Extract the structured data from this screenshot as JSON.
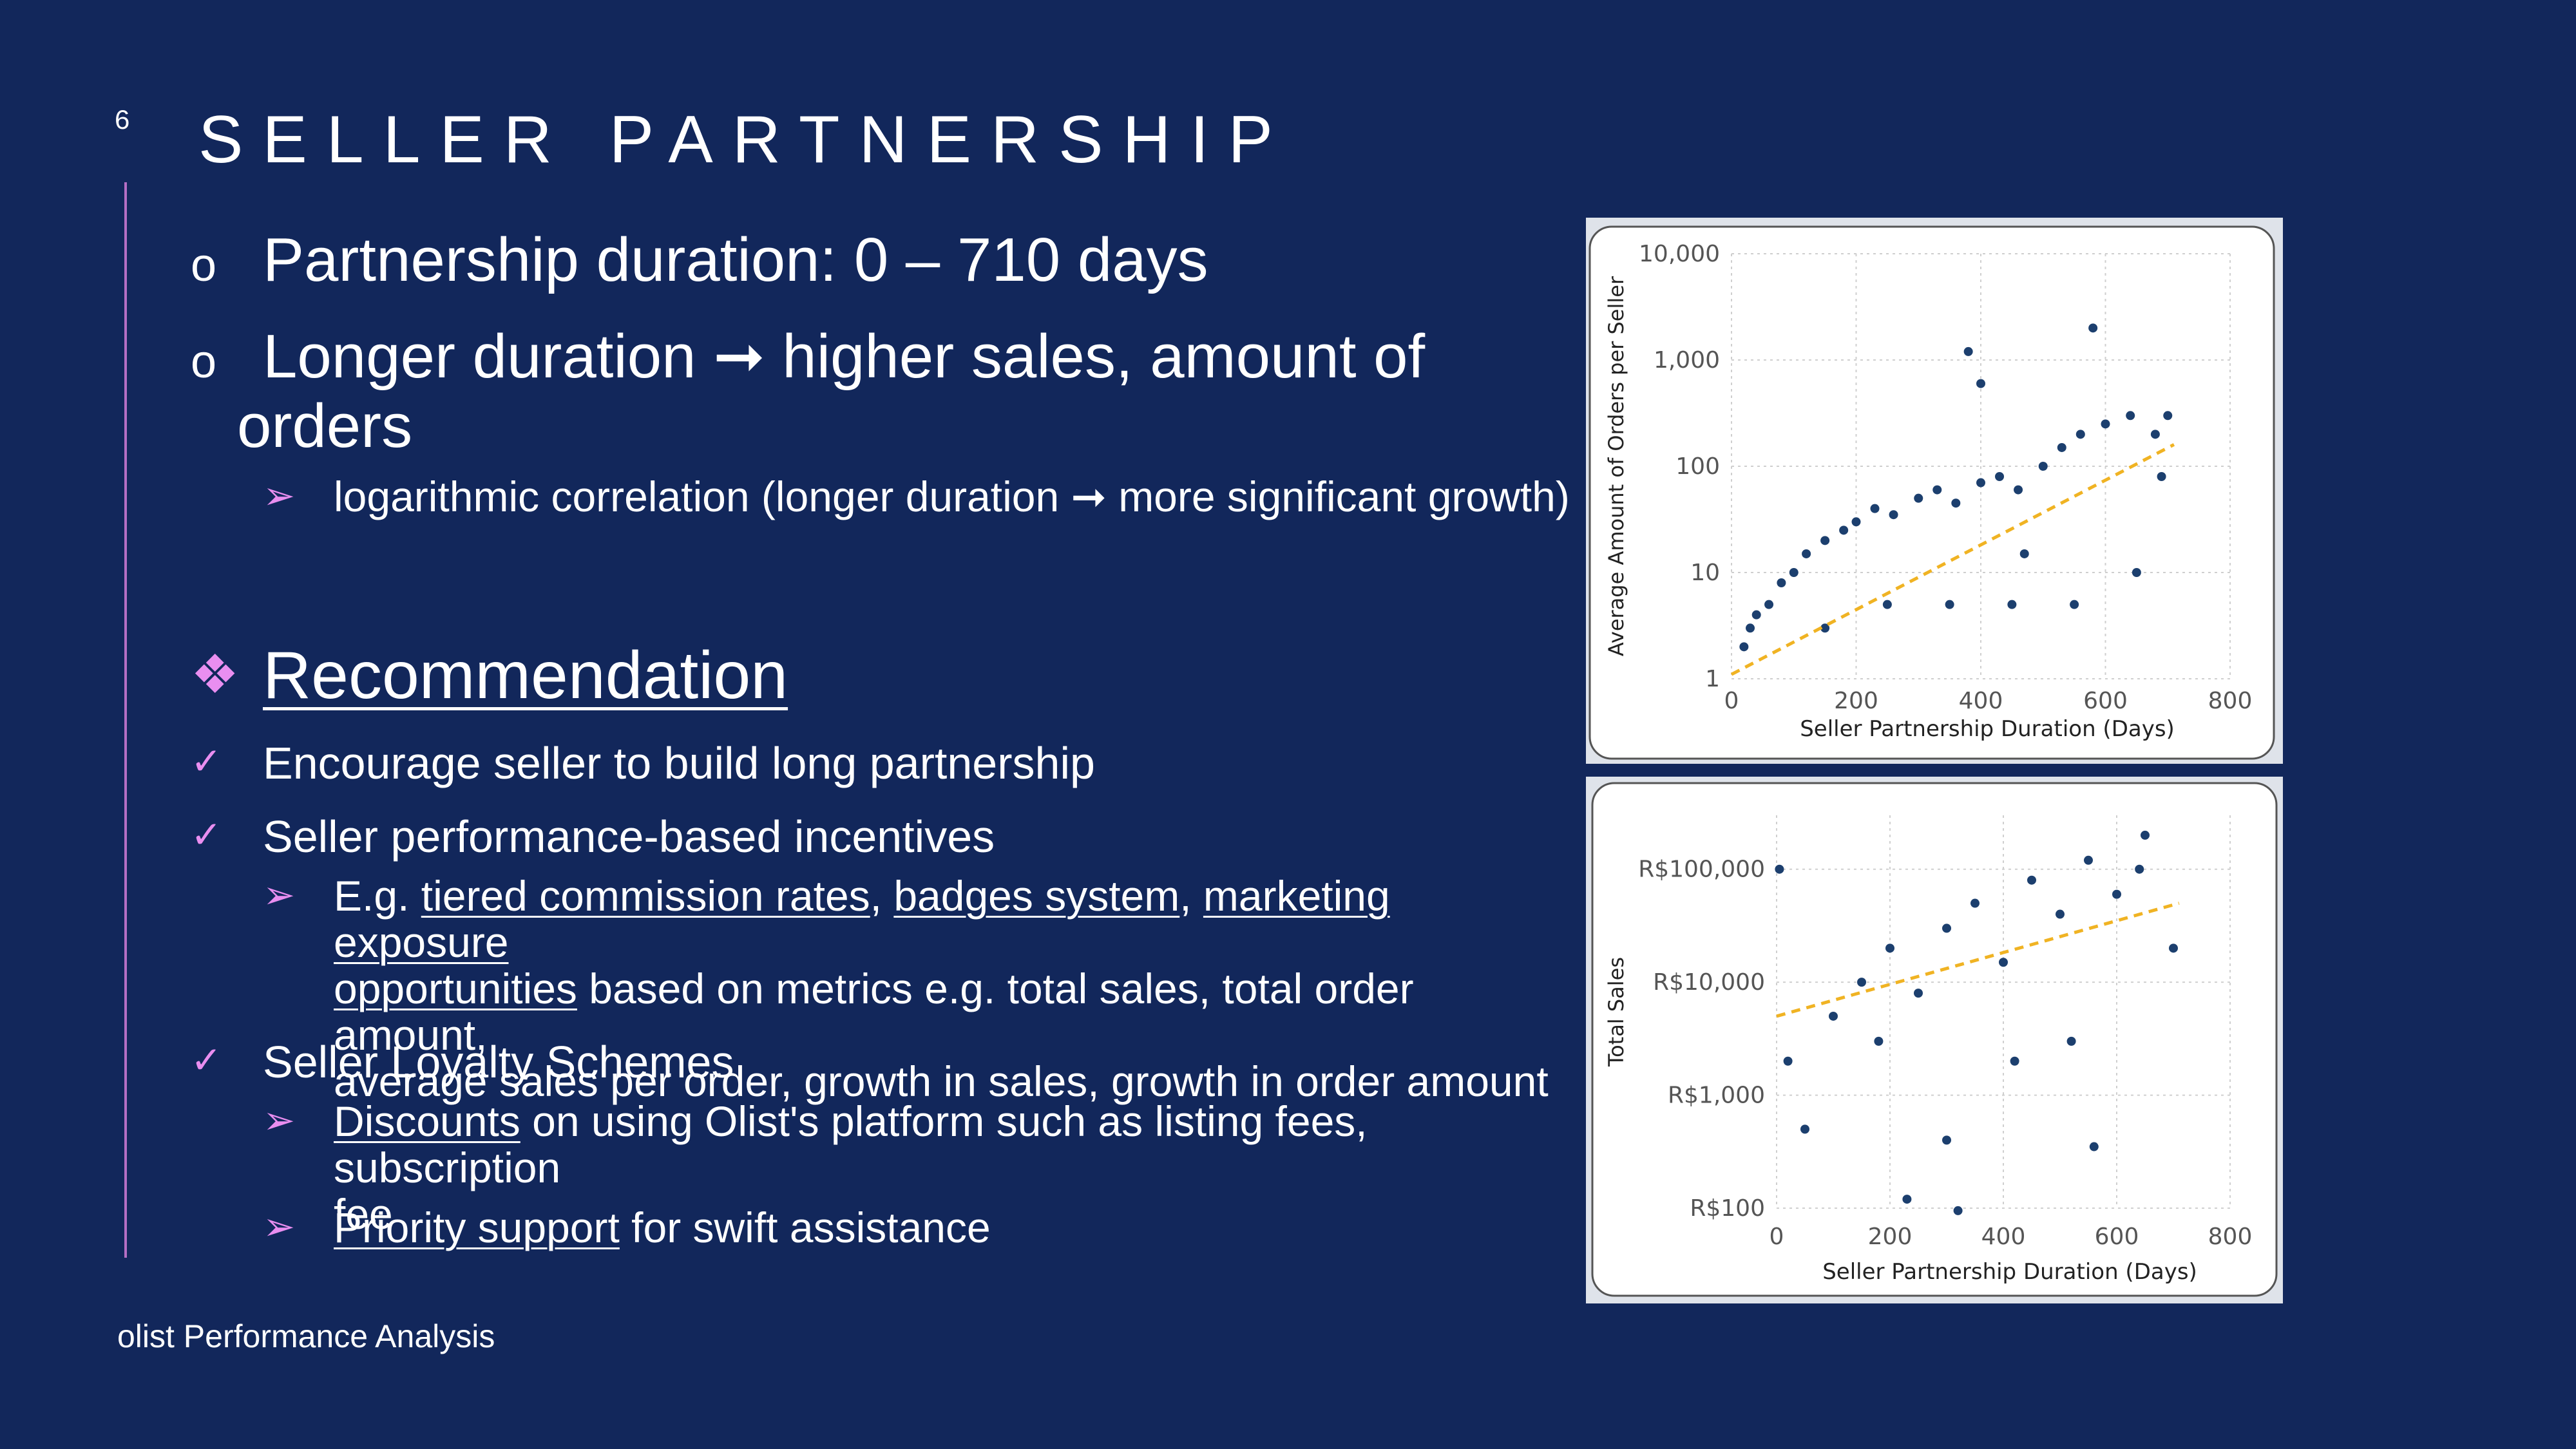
{
  "page_number": "6",
  "title": "SELLER PARTNERSHIP",
  "bullets": {
    "b1": "Partnership duration: 0 – 710 days",
    "b2_line1": "Longer duration ➞ higher sales, amount of",
    "b2_line2": "orders",
    "b2_sub": "logarithmic correlation (longer duration ➞ more significant growth)"
  },
  "recommendation": {
    "heading": "Recommendation",
    "item1": "Encourage seller to build long partnership",
    "item2": "Seller performance-based incentives",
    "item2_sub": {
      "eg": "E.g. ",
      "link1": "tiered commission rates",
      "sep1": ", ",
      "link2": "badges system",
      "sep2": ", ",
      "link3a": "marketing exposure",
      "link3b": "opportunities",
      "rest1": " based on metrics e.g. total sales, total order amount,",
      "rest2": "average sales per order, growth in sales, growth in order amount"
    },
    "item3": "Seller Loyalty Schemes",
    "item3_sub1": {
      "link": "Discounts",
      "rest1": " on using Olist's platform such as listing fees, subscription",
      "rest2": "fee"
    },
    "item3_sub2": {
      "link": "Priority support",
      "rest": " for swift assistance"
    }
  },
  "footer": "olist Performance Analysis",
  "markers": {
    "circle": "o",
    "arrow": "➢",
    "check": "✓",
    "diamond": "❖"
  },
  "colors": {
    "background": "#12275b",
    "accent": "#e98ef0",
    "point": "#1c3f6e",
    "trend": "#f0b323"
  },
  "chart_data": [
    {
      "type": "scatter",
      "xlabel": "Seller Partnership Duration (Days)",
      "ylabel": "Average Amount of Orders per Seller",
      "x_ticks": [
        "0",
        "200",
        "400",
        "600",
        "800"
      ],
      "y_ticks": [
        "1",
        "10",
        "100",
        "1,000",
        "10,000"
      ],
      "xlim": [
        0,
        800
      ],
      "ylim": [
        1,
        10000
      ],
      "y_scale": "log",
      "grid": true,
      "trendline": {
        "x": [
          0,
          710
        ],
        "y": [
          1.1,
          160
        ]
      },
      "points": [
        [
          20,
          2
        ],
        [
          30,
          3
        ],
        [
          40,
          4
        ],
        [
          60,
          5
        ],
        [
          80,
          8
        ],
        [
          100,
          10
        ],
        [
          120,
          15
        ],
        [
          150,
          20
        ],
        [
          180,
          25
        ],
        [
          200,
          30
        ],
        [
          230,
          40
        ],
        [
          260,
          35
        ],
        [
          300,
          50
        ],
        [
          330,
          60
        ],
        [
          360,
          45
        ],
        [
          400,
          70
        ],
        [
          430,
          80
        ],
        [
          460,
          60
        ],
        [
          500,
          100
        ],
        [
          530,
          150
        ],
        [
          560,
          200
        ],
        [
          600,
          250
        ],
        [
          640,
          300
        ],
        [
          680,
          200
        ],
        [
          700,
          300
        ],
        [
          380,
          1200
        ],
        [
          580,
          2000
        ],
        [
          400,
          600
        ],
        [
          150,
          3
        ],
        [
          250,
          5
        ],
        [
          350,
          5
        ],
        [
          450,
          5
        ],
        [
          550,
          5
        ],
        [
          470,
          15
        ],
        [
          650,
          10
        ],
        [
          690,
          80
        ]
      ]
    },
    {
      "type": "scatter",
      "xlabel": "Seller Partnership Duration (Days)",
      "ylabel": "Total Sales",
      "x_ticks": [
        "0",
        "200",
        "400",
        "600",
        "800"
      ],
      "y_ticks": [
        "R$100",
        "R$1,000",
        "R$10,000",
        "R$100,000"
      ],
      "xlim": [
        0,
        800
      ],
      "ylim": [
        100,
        300000
      ],
      "y_scale": "log",
      "grid": true,
      "trendline": {
        "x": [
          0,
          710
        ],
        "y": [
          5000,
          50000
        ]
      },
      "points": [
        [
          5,
          100000
        ],
        [
          20,
          2000
        ],
        [
          50,
          500
        ],
        [
          100,
          5000
        ],
        [
          150,
          10000
        ],
        [
          200,
          20000
        ],
        [
          250,
          8000
        ],
        [
          300,
          30000
        ],
        [
          350,
          50000
        ],
        [
          400,
          15000
        ],
        [
          450,
          80000
        ],
        [
          500,
          40000
        ],
        [
          550,
          120000
        ],
        [
          600,
          60000
        ],
        [
          650,
          200000
        ],
        [
          700,
          20000
        ],
        [
          230,
          120
        ],
        [
          320,
          95
        ],
        [
          300,
          400
        ],
        [
          560,
          350
        ],
        [
          640,
          100000
        ],
        [
          180,
          3000
        ],
        [
          420,
          2000
        ],
        [
          520,
          3000
        ]
      ]
    }
  ]
}
